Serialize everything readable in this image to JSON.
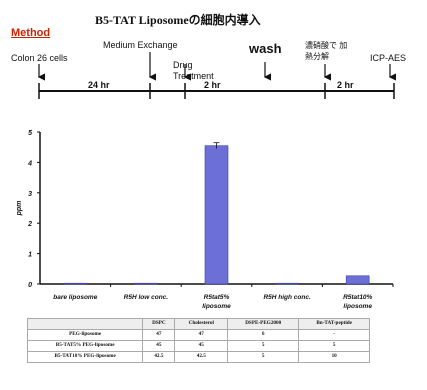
{
  "slide": {
    "title": "B5-TAT Liposomeの細胞内導入",
    "method_label": "Method"
  },
  "timeline": {
    "steps": [
      "Colon 26 cells",
      "Medium Exchange",
      "Drug Treatment",
      "wash",
      "濃硝酸で 加熱分解",
      "ICP-AES"
    ],
    "durations": [
      "24 hr",
      "2 hr",
      "2 hr"
    ]
  },
  "chart_data": {
    "type": "bar",
    "categories": [
      "bare liposome",
      "R5H low conc.",
      "R5tat5% liposome",
      "R5H high conc.",
      "R5tat10% liposome"
    ],
    "values": [
      0.01,
      0.01,
      4.55,
      0.01,
      0.27
    ],
    "ylabel": "ppm",
    "ylim": [
      0,
      5
    ],
    "yticks": [
      0,
      1,
      2,
      3,
      4,
      5
    ],
    "bar_color": "#6b6fd6"
  },
  "composition_table": {
    "headers": [
      "",
      "DSPC",
      "Cholesterol",
      "DSPE-PEG2000",
      "Bn-TAT-peptide"
    ],
    "rows": [
      [
        "PEG-liposome",
        "47",
        "47",
        "6",
        "-"
      ],
      [
        "B5-TAT5% PEG-liposome",
        "45",
        "45",
        "5",
        "5"
      ],
      [
        "B5-TAT10% PEG-liposome",
        "42.5",
        "42.5",
        "5",
        "10"
      ]
    ]
  }
}
